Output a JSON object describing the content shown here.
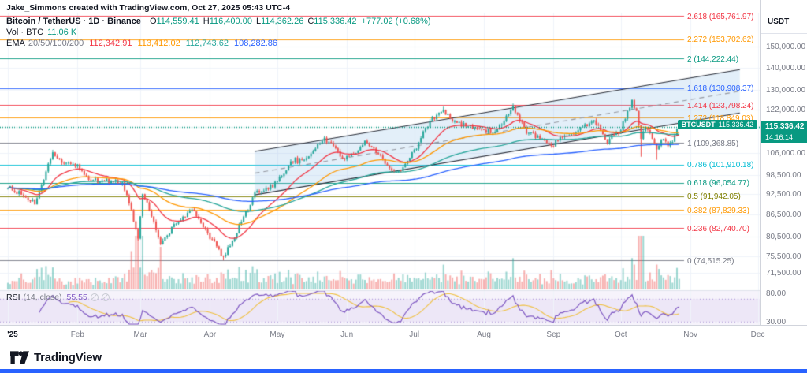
{
  "attribution": "Jake_Simmons created with TradingView.com, Oct 27, 2025 05:43 UTC-4",
  "symbol": {
    "title": "Bitcoin / TetherUS · 1D · Binance",
    "ohlc": {
      "o_label": "O",
      "o": "114,559.41",
      "h_label": "H",
      "h": "116,400.00",
      "l_label": "L",
      "l": "114,362.26",
      "c_label": "C",
      "c": "115,336.42",
      "change": "+777.02 (+0.68%)"
    }
  },
  "volume_row": {
    "label": "Vol · BTC",
    "value": "11.06 K"
  },
  "ema_row": {
    "label": "EMA",
    "periods": "20/50/100/200",
    "values": [
      {
        "text": "112,342.91",
        "color": "#f23645"
      },
      {
        "text": "113,412.02",
        "color": "#ff9800"
      },
      {
        "text": "112,743.62",
        "color": "#26a69a"
      },
      {
        "text": "108,282.86",
        "color": "#2962ff"
      }
    ]
  },
  "price_badge": {
    "symbol_tag": "BTCUSDT",
    "price": "115,336.42",
    "countdown": "14:16:14"
  },
  "axis": {
    "currency": "USDT",
    "ticks": [
      {
        "label": "150,000.00",
        "price": 150000
      },
      {
        "label": "140,000.00",
        "price": 140000
      },
      {
        "label": "130,000.00",
        "price": 130000
      },
      {
        "label": "122,000.00",
        "price": 122000
      },
      {
        "label": "106,000.00",
        "price": 106000
      },
      {
        "label": "98,500.00",
        "price": 98500
      },
      {
        "label": "92,500.00",
        "price": 92500
      },
      {
        "label": "86,500.00",
        "price": 86500
      },
      {
        "label": "80,500.00",
        "price": 80500
      },
      {
        "label": "75,500.00",
        "price": 75500
      },
      {
        "label": "71,500.00",
        "price": 71500
      }
    ],
    "rsi_ticks": [
      {
        "label": "80.00",
        "value": 80
      },
      {
        "label": "30.00",
        "value": 30
      }
    ]
  },
  "time_axis": {
    "labels": [
      {
        "text": "'25",
        "day": 0
      },
      {
        "text": "Feb",
        "day": 31
      },
      {
        "text": "Mar",
        "day": 59
      },
      {
        "text": "Apr",
        "day": 90
      },
      {
        "text": "May",
        "day": 120
      },
      {
        "text": "Jun",
        "day": 151
      },
      {
        "text": "Jul",
        "day": 181
      },
      {
        "text": "Aug",
        "day": 212
      },
      {
        "text": "Sep",
        "day": 243
      },
      {
        "text": "Oct",
        "day": 273
      },
      {
        "text": "Nov",
        "day": 304
      },
      {
        "text": "Dec",
        "day": 334
      }
    ]
  },
  "rsi_legend": {
    "title": "RSI",
    "params": "(14, close)",
    "value": "55.55"
  },
  "footer": {
    "brand": "TradingView"
  },
  "colors": {
    "up": "#26a69a",
    "down": "#ef5350",
    "teal": "#089981",
    "accent_blue": "#2962ff",
    "rsi_purple": "#7e57c2",
    "rsi_ma_yellow": "#f0c040",
    "channel_fill": "rgba(126,182,226,0.22)"
  },
  "chart_data": {
    "type": "candlestick",
    "title": "Bitcoin / TetherUS",
    "exchange": "Binance",
    "interval": "1D",
    "price_scale": "logarithmic",
    "ohlc_last": {
      "open": 114559.41,
      "high": 116400.0,
      "low": 114362.26,
      "close": 115336.42,
      "change": 777.02,
      "change_pct": 0.68
    },
    "volume_last_btc": "11.06 K",
    "ema_periods": [
      20,
      50,
      100,
      200
    ],
    "ema_last": [
      112342.91,
      113412.02,
      112743.62,
      108282.86
    ],
    "rsi_period": 14,
    "rsi_last": 55.55,
    "y_axis_visible_range": [
      71500,
      167000
    ],
    "x_axis_months": [
      "'25",
      "Feb",
      "Mar",
      "Apr",
      "May",
      "Jun",
      "Jul",
      "Aug",
      "Sep",
      "Oct",
      "Nov",
      "Dec"
    ],
    "fib_levels": [
      {
        "label": "2.618 (165,761.97)",
        "level": 2.618,
        "price": 165761.97,
        "color": "#f23645"
      },
      {
        "label": "2.272 (153,702.62)",
        "level": 2.272,
        "price": 153702.62,
        "color": "#ff9800"
      },
      {
        "label": "2 (144,222.44)",
        "level": 2,
        "price": 144222.44,
        "color": "#089981"
      },
      {
        "label": "1.618 (130,908.37)",
        "level": 1.618,
        "price": 130908.37,
        "color": "#2962ff"
      },
      {
        "label": "1.414 (123,798.24)",
        "level": 1.414,
        "price": 123798.24,
        "color": "#f23645"
      },
      {
        "label": "1.272 (118,849.03)",
        "level": 1.272,
        "price": 118849.03,
        "color": "#ff9800"
      },
      {
        "label": "1 (109,368.85)",
        "level": 1,
        "price": 109368.85,
        "color": "#787b86"
      },
      {
        "label": "0.786 (101,910.18)",
        "level": 0.786,
        "price": 101910.18,
        "color": "#00bcd4"
      },
      {
        "label": "0.618 (96,054.77)",
        "level": 0.618,
        "price": 96054.77,
        "color": "#089981"
      },
      {
        "label": "0.5 (91,942.05)",
        "level": 0.5,
        "price": 91942.05,
        "color": "#808000"
      },
      {
        "label": "0.382 (87,829.33)",
        "level": 0.382,
        "price": 87829.33,
        "color": "#ff9800"
      },
      {
        "label": "0.236 (82,740.70)",
        "level": 0.236,
        "price": 82740.7,
        "color": "#f23645"
      },
      {
        "label": "0 (74,515.25)",
        "level": 0,
        "price": 74515.25,
        "color": "#787b86"
      }
    ],
    "price_anchors_day_price": [
      [
        0,
        94400
      ],
      [
        8,
        91500
      ],
      [
        12,
        89500
      ],
      [
        20,
        106100
      ],
      [
        24,
        102500
      ],
      [
        31,
        102000
      ],
      [
        36,
        97000
      ],
      [
        43,
        96500
      ],
      [
        51,
        96200
      ],
      [
        55,
        88000
      ],
      [
        58,
        80000
      ],
      [
        60,
        92500
      ],
      [
        64,
        86000
      ],
      [
        68,
        78500
      ],
      [
        75,
        84000
      ],
      [
        82,
        88000
      ],
      [
        88,
        82500
      ],
      [
        93,
        78000
      ],
      [
        96,
        75500
      ],
      [
        100,
        79500
      ],
      [
        104,
        84500
      ],
      [
        111,
        93500
      ],
      [
        116,
        94000
      ],
      [
        120,
        96500
      ],
      [
        126,
        103000
      ],
      [
        131,
        103500
      ],
      [
        136,
        106500
      ],
      [
        141,
        111300
      ],
      [
        146,
        107500
      ],
      [
        149,
        104000
      ],
      [
        154,
        105500
      ],
      [
        159,
        110200
      ],
      [
        166,
        105000
      ],
      [
        172,
        99500
      ],
      [
        176,
        101000
      ],
      [
        181,
        107000
      ],
      [
        183,
        109600
      ],
      [
        188,
        117500
      ],
      [
        194,
        122000
      ],
      [
        199,
        117500
      ],
      [
        205,
        115500
      ],
      [
        212,
        114200
      ],
      [
        217,
        113500
      ],
      [
        221,
        117400
      ],
      [
        225,
        123500
      ],
      [
        231,
        112800
      ],
      [
        238,
        111000
      ],
      [
        242,
        108400
      ],
      [
        247,
        111500
      ],
      [
        252,
        112500
      ],
      [
        256,
        115400
      ],
      [
        260,
        117300
      ],
      [
        263,
        116000
      ],
      [
        267,
        109200
      ],
      [
        270,
        112300
      ],
      [
        273,
        114000
      ],
      [
        278,
        125900
      ],
      [
        280,
        121500
      ],
      [
        282,
        110900
      ],
      [
        284,
        115000
      ],
      [
        286,
        112900
      ],
      [
        289,
        107100
      ],
      [
        292,
        110800
      ],
      [
        294,
        108300
      ],
      [
        296,
        109800
      ],
      [
        298,
        114559.41
      ],
      [
        299,
        115336.42
      ]
    ],
    "wick_events": [
      {
        "day": 20,
        "high": 106953
      },
      {
        "day": 96,
        "low": 74515.25
      },
      {
        "day": 141,
        "high": 111980
      },
      {
        "day": 194,
        "high": 123218
      },
      {
        "day": 225,
        "high": 124474
      },
      {
        "day": 278,
        "high": 126199
      },
      {
        "day": 282,
        "low": 104582
      },
      {
        "day": 289,
        "low": 103530
      },
      {
        "day": 299,
        "high": 116400,
        "low": 114362.26
      }
    ],
    "volume_spikes": {
      "20": 1.8,
      "55": 2.2,
      "57": 2.6,
      "58": 3.0,
      "60": 2.4,
      "68": 2.0,
      "96": 2.8,
      "111": 1.8,
      "141": 1.9,
      "172": 1.6,
      "194": 2.0,
      "225": 1.9,
      "242": 1.5,
      "278": 1.8,
      "281": 2.6,
      "282": 3.8,
      "283": 2.4,
      "286": 1.8,
      "289": 2.6,
      "290": 2.0,
      "298": 1.4
    },
    "channel": {
      "upper_day_price": [
        [
          110,
          106400
        ],
        [
          326,
          139100
        ]
      ],
      "lower_day_price": [
        [
          110,
          92300
        ],
        [
          326,
          120700
        ]
      ]
    }
  }
}
